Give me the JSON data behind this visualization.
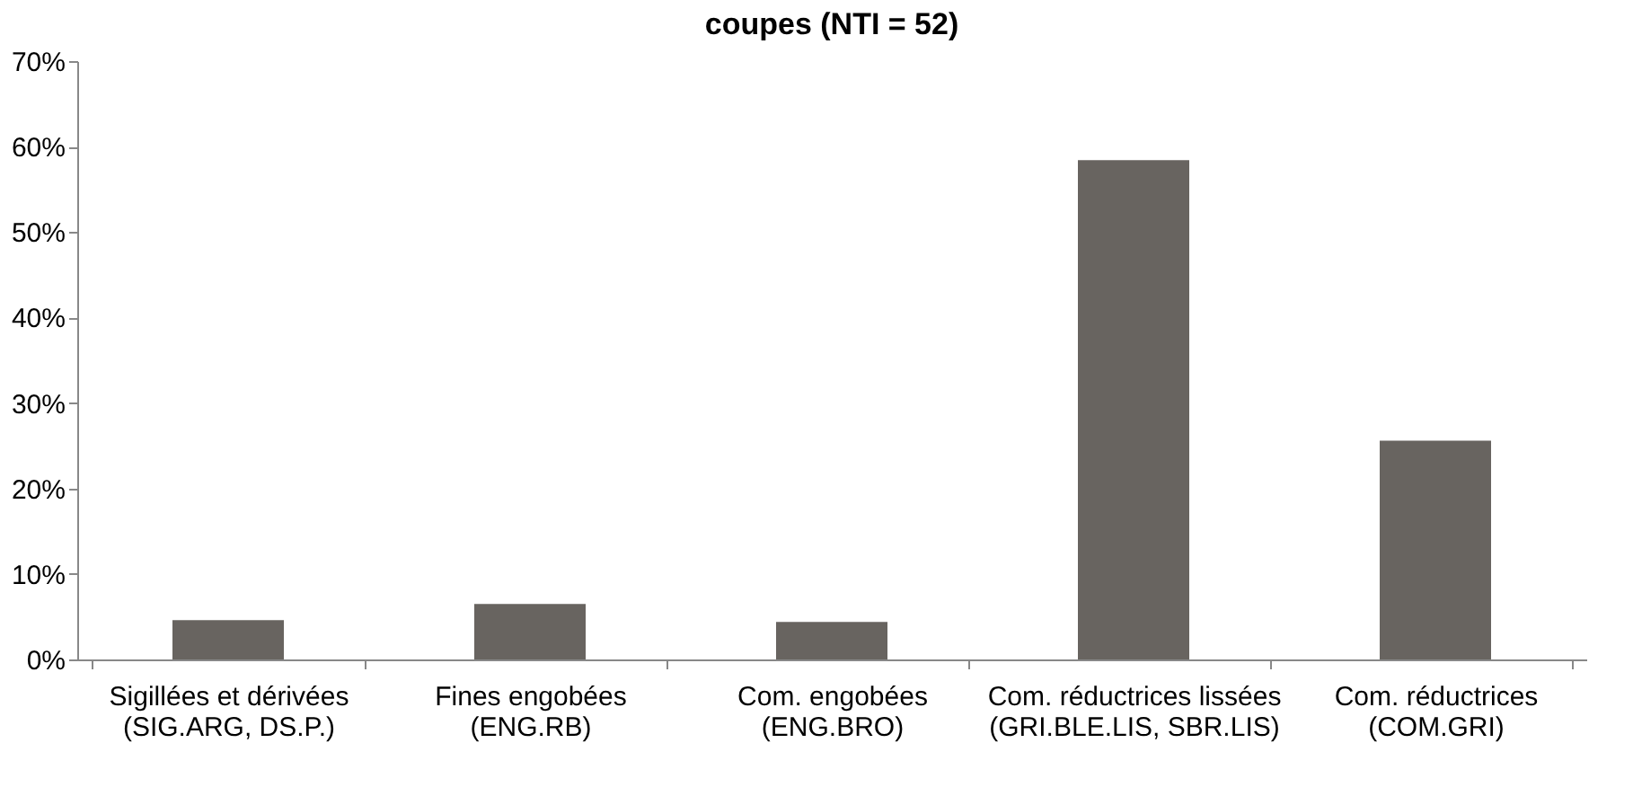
{
  "chart_data": {
    "type": "bar",
    "title": "coupes (NTI = 52)",
    "categories": [
      "Sigillées et dérivées\n(SIG.ARG, DS.P.)",
      "Fines engobées\n(ENG.RB)",
      "Com. engobées\n(ENG.BRO)",
      "Com. réductrices lissées\n(GRI.BLE.LIS, SBR.LIS)",
      "Com. réductrices\n(COM.GRI)"
    ],
    "values": [
      4.6,
      6.5,
      4.4,
      58.4,
      25.6
    ],
    "color": "#686460",
    "ylim": [
      0,
      70
    ],
    "yticks": [
      {
        "value": 0,
        "label": "0%"
      },
      {
        "value": 10,
        "label": "10%"
      },
      {
        "value": 20,
        "label": "20%"
      },
      {
        "value": 30,
        "label": "30%"
      },
      {
        "value": 40,
        "label": "40%"
      },
      {
        "value": 50,
        "label": "50%"
      },
      {
        "value": 60,
        "label": "60%"
      },
      {
        "value": 70,
        "label": "70%"
      }
    ],
    "grid": false
  }
}
